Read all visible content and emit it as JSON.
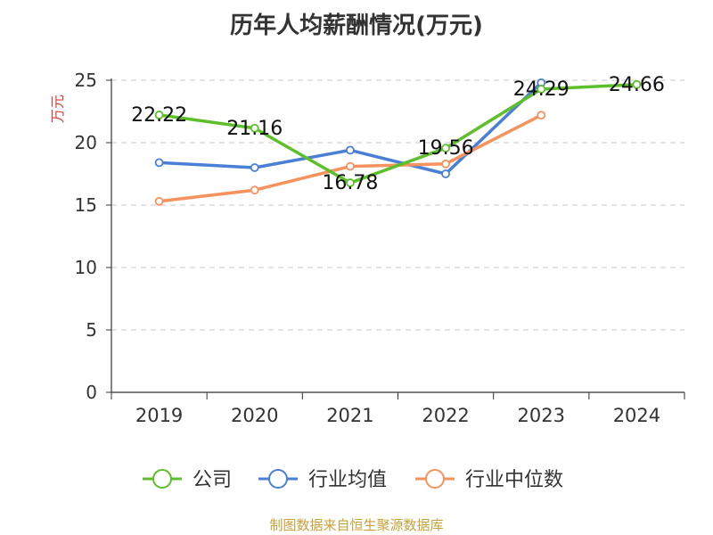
{
  "chart_data": {
    "type": "line",
    "title": "历年人均薪酬情况(万元)",
    "ylabel": "万元",
    "xlabel": "",
    "categories": [
      "2019",
      "2020",
      "2021",
      "2022",
      "2023",
      "2024"
    ],
    "y_ticks": [
      "0",
      "5",
      "10",
      "15",
      "20",
      "25"
    ],
    "ylim": [
      0,
      25
    ],
    "grid": true,
    "legend_position": "bottom",
    "series": [
      {
        "name": "公司",
        "color": "#5dbf2a",
        "values": [
          22.22,
          21.16,
          16.78,
          19.56,
          24.29,
          24.66
        ],
        "labels": [
          "22.22",
          "21.16",
          "16.78",
          "19.56",
          "24.29",
          "24.66"
        ]
      },
      {
        "name": "行业均值",
        "color": "#4a7fd6",
        "values": [
          18.4,
          18.0,
          19.4,
          17.5,
          24.8,
          null
        ]
      },
      {
        "name": "行业中位数",
        "color": "#f5925e",
        "values": [
          15.3,
          16.2,
          18.1,
          18.3,
          22.2,
          null
        ]
      }
    ],
    "source": "制图数据来自恒生聚源数据库"
  }
}
